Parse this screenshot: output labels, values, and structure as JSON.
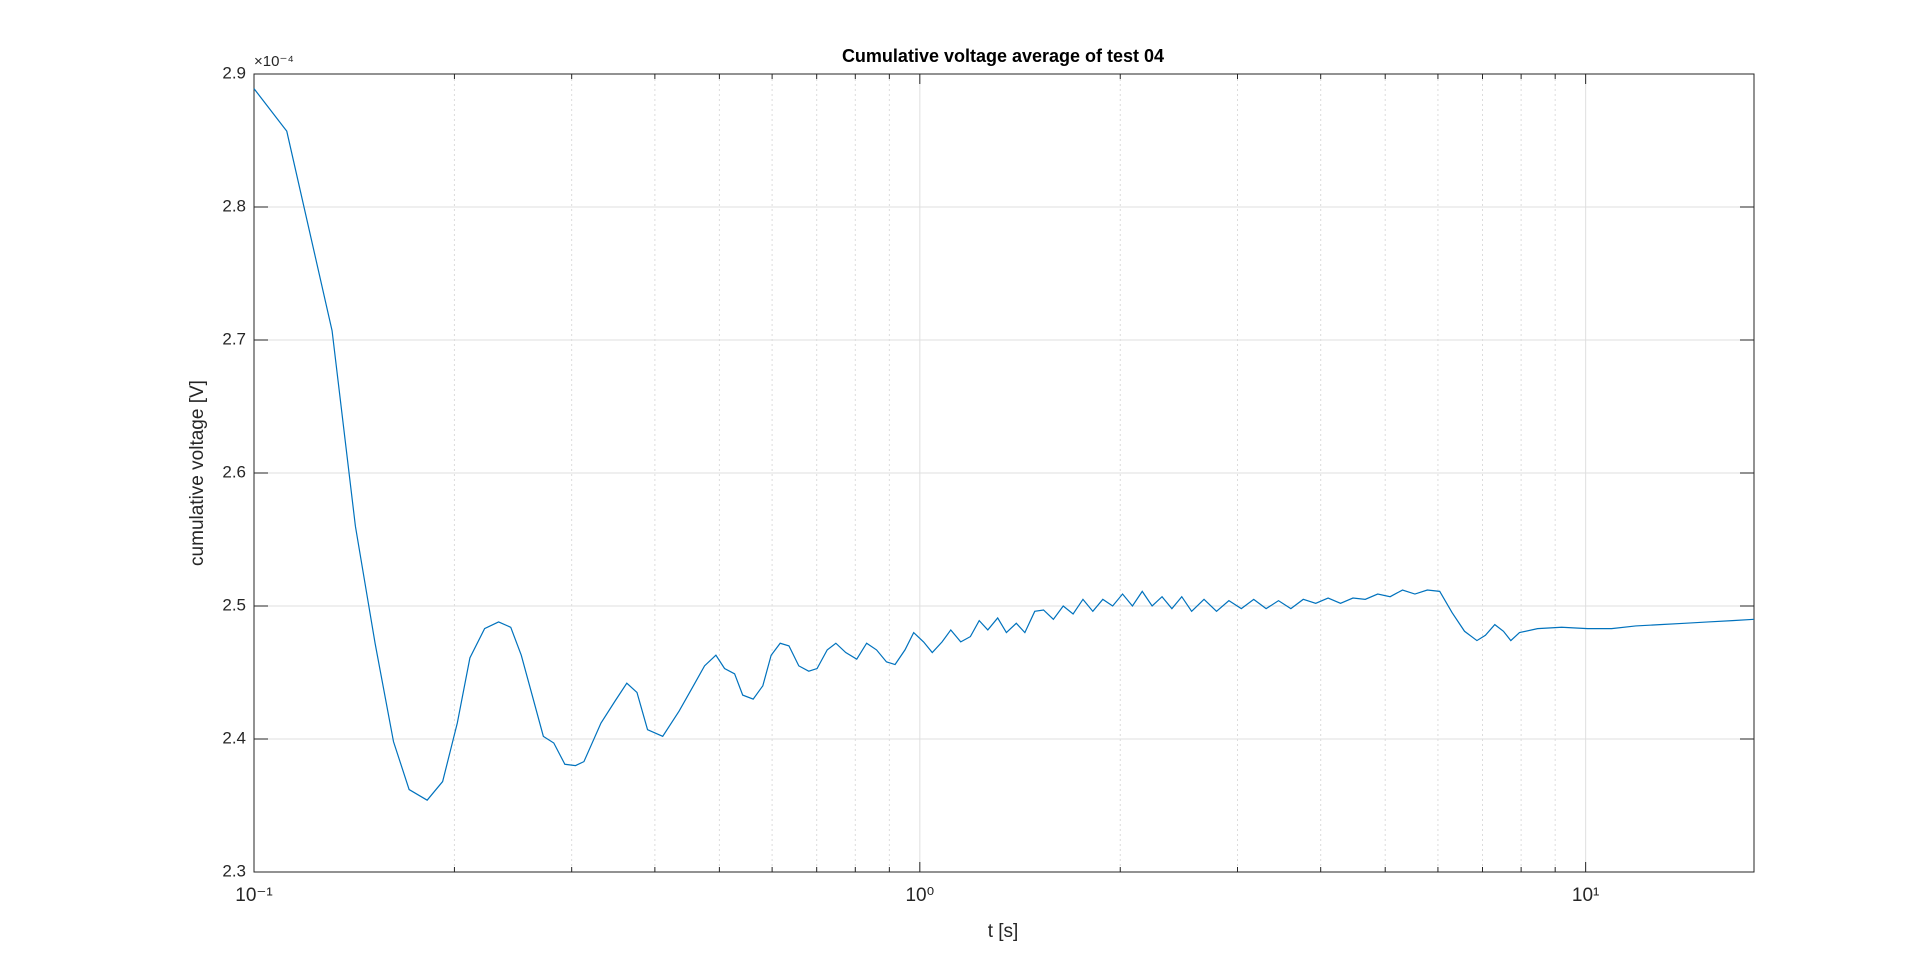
{
  "chart_data": {
    "type": "line",
    "title": "Cumulative voltage average of test 04",
    "xlabel": "t [s]",
    "ylabel": "cumulative voltage [V]",
    "y_exponent_label": "×10⁻⁴",
    "xscale": "log",
    "grid": true,
    "xlim": [
      0.1,
      17.9
    ],
    "ylim": [
      2.3,
      2.9
    ],
    "xticks": [
      {
        "value": 0.1,
        "label": "10⁻¹"
      },
      {
        "value": 1,
        "label": "10⁰"
      },
      {
        "value": 10,
        "label": "10¹"
      }
    ],
    "xminorticks": [
      0.2,
      0.3,
      0.4,
      0.5,
      0.6,
      0.7,
      0.8,
      0.9,
      2,
      3,
      4,
      5,
      6,
      7,
      8,
      9
    ],
    "yticks": [
      2.3,
      2.4,
      2.5,
      2.6,
      2.7,
      2.8,
      2.9
    ],
    "x": [
      0.1,
      0.112,
      0.131,
      0.142,
      0.152,
      0.162,
      0.171,
      0.182,
      0.192,
      0.202,
      0.211,
      0.222,
      0.233,
      0.243,
      0.252,
      0.262,
      0.272,
      0.282,
      0.293,
      0.304,
      0.313,
      0.332,
      0.348,
      0.363,
      0.376,
      0.39,
      0.411,
      0.435,
      0.457,
      0.475,
      0.494,
      0.509,
      0.527,
      0.542,
      0.562,
      0.581,
      0.598,
      0.617,
      0.636,
      0.658,
      0.681,
      0.701,
      0.726,
      0.748,
      0.774,
      0.804,
      0.832,
      0.861,
      0.891,
      0.918,
      0.95,
      0.979,
      1.013,
      1.044,
      1.08,
      1.113,
      1.152,
      1.191,
      1.228,
      1.265,
      1.309,
      1.349,
      1.396,
      1.438,
      1.488,
      1.534,
      1.587,
      1.642,
      1.699,
      1.758,
      1.819,
      1.883,
      1.948,
      2.016,
      2.086,
      2.158,
      2.233,
      2.311,
      2.391,
      2.474,
      2.56,
      2.672,
      2.79,
      2.912,
      3.04,
      3.173,
      3.312,
      3.457,
      3.608,
      3.766,
      3.932,
      4.104,
      4.284,
      4.472,
      4.667,
      4.872,
      5.086,
      5.308,
      5.541,
      5.784,
      6.037,
      6.302,
      6.578,
      6.866,
      7.071,
      7.304,
      7.526,
      7.72,
      7.955,
      8.468,
      9.203,
      10.07,
      10.94,
      11.89,
      12.93,
      14.06,
      15.28,
      16.61,
      17.9
    ],
    "series": [
      {
        "name": "cumulative voltage",
        "color": "#0072bd",
        "values": [
          2.889,
          2.857,
          2.707,
          2.56,
          2.472,
          2.398,
          2.362,
          2.354,
          2.368,
          2.412,
          2.461,
          2.483,
          2.488,
          2.484,
          2.463,
          2.432,
          2.402,
          2.397,
          2.381,
          2.38,
          2.383,
          2.412,
          2.428,
          2.442,
          2.435,
          2.407,
          2.402,
          2.421,
          2.44,
          2.455,
          2.463,
          2.453,
          2.449,
          2.433,
          2.43,
          2.44,
          2.463,
          2.472,
          2.47,
          2.455,
          2.451,
          2.453,
          2.467,
          2.472,
          2.465,
          2.46,
          2.472,
          2.467,
          2.458,
          2.456,
          2.467,
          2.48,
          2.473,
          2.465,
          2.473,
          2.482,
          2.473,
          2.477,
          2.489,
          2.482,
          2.491,
          2.48,
          2.487,
          2.48,
          2.496,
          2.497,
          2.49,
          2.5,
          2.494,
          2.505,
          2.496,
          2.505,
          2.5,
          2.509,
          2.5,
          2.511,
          2.5,
          2.507,
          2.498,
          2.507,
          2.496,
          2.505,
          2.496,
          2.504,
          2.498,
          2.505,
          2.498,
          2.504,
          2.498,
          2.505,
          2.502,
          2.506,
          2.502,
          2.506,
          2.505,
          2.509,
          2.507,
          2.512,
          2.509,
          2.512,
          2.511,
          2.495,
          2.481,
          2.474,
          2.478,
          2.486,
          2.481,
          2.474,
          2.48,
          2.483,
          2.484,
          2.483,
          2.483,
          2.485,
          2.486,
          2.487,
          2.488,
          2.489,
          2.49
        ]
      }
    ]
  }
}
